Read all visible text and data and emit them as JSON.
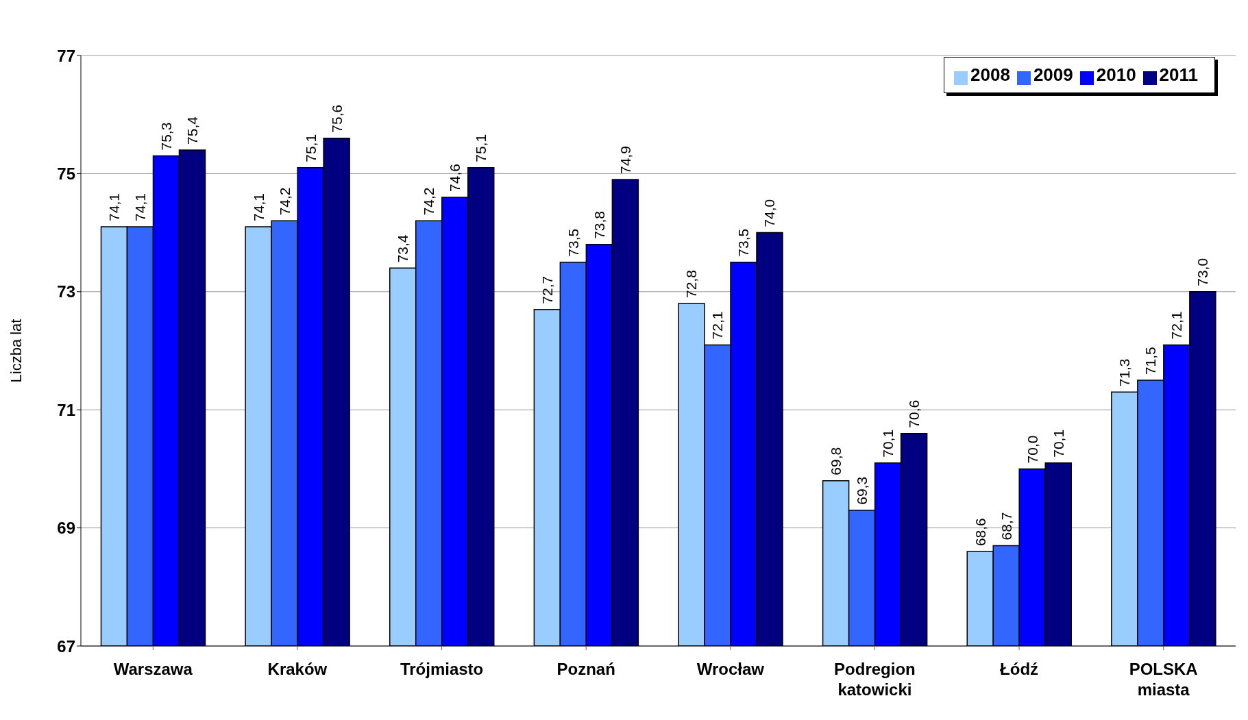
{
  "chart_data": {
    "type": "bar",
    "ylabel": "Liczba lat",
    "categories": [
      "Warszawa",
      "Kraków",
      "Trójmiasto",
      "Poznań",
      "Wrocław",
      "Podregion katowicki",
      "Łódź",
      "POLSKA miasta"
    ],
    "series": [
      {
        "name": "2008",
        "color": "#99ccff",
        "values": [
          74.1,
          74.1,
          73.4,
          72.7,
          72.8,
          69.8,
          68.6,
          71.3
        ],
        "value_labels": [
          "74,1",
          "74,1",
          "73,4",
          "72,7",
          "72,8",
          "69,8",
          "68,6",
          "71,3"
        ]
      },
      {
        "name": "2009",
        "color": "#3366ff",
        "values": [
          74.1,
          74.2,
          74.2,
          73.5,
          72.1,
          69.3,
          68.7,
          71.5
        ],
        "value_labels": [
          "74,1",
          "74,2",
          "74,2",
          "73,5",
          "72,1",
          "69,3",
          "68,7",
          "71,5"
        ]
      },
      {
        "name": "2010",
        "color": "#0000ff",
        "values": [
          75.3,
          75.1,
          74.6,
          73.8,
          73.5,
          70.1,
          70.0,
          72.1
        ],
        "value_labels": [
          "75,3",
          "75,1",
          "74,6",
          "73,8",
          "73,5",
          "70,1",
          "70,0",
          "72,1"
        ]
      },
      {
        "name": "2011",
        "color": "#000080",
        "values": [
          75.4,
          75.6,
          75.1,
          74.9,
          74.0,
          70.6,
          70.1,
          73.0
        ],
        "value_labels": [
          "75,4",
          "75,6",
          "75,1",
          "74,9",
          "74,0",
          "70,6",
          "70,1",
          "73,0"
        ]
      }
    ],
    "ylim": [
      67,
      77
    ],
    "yticks": [
      67,
      69,
      71,
      73,
      75,
      77
    ],
    "grid": "y",
    "legend": "top right"
  }
}
